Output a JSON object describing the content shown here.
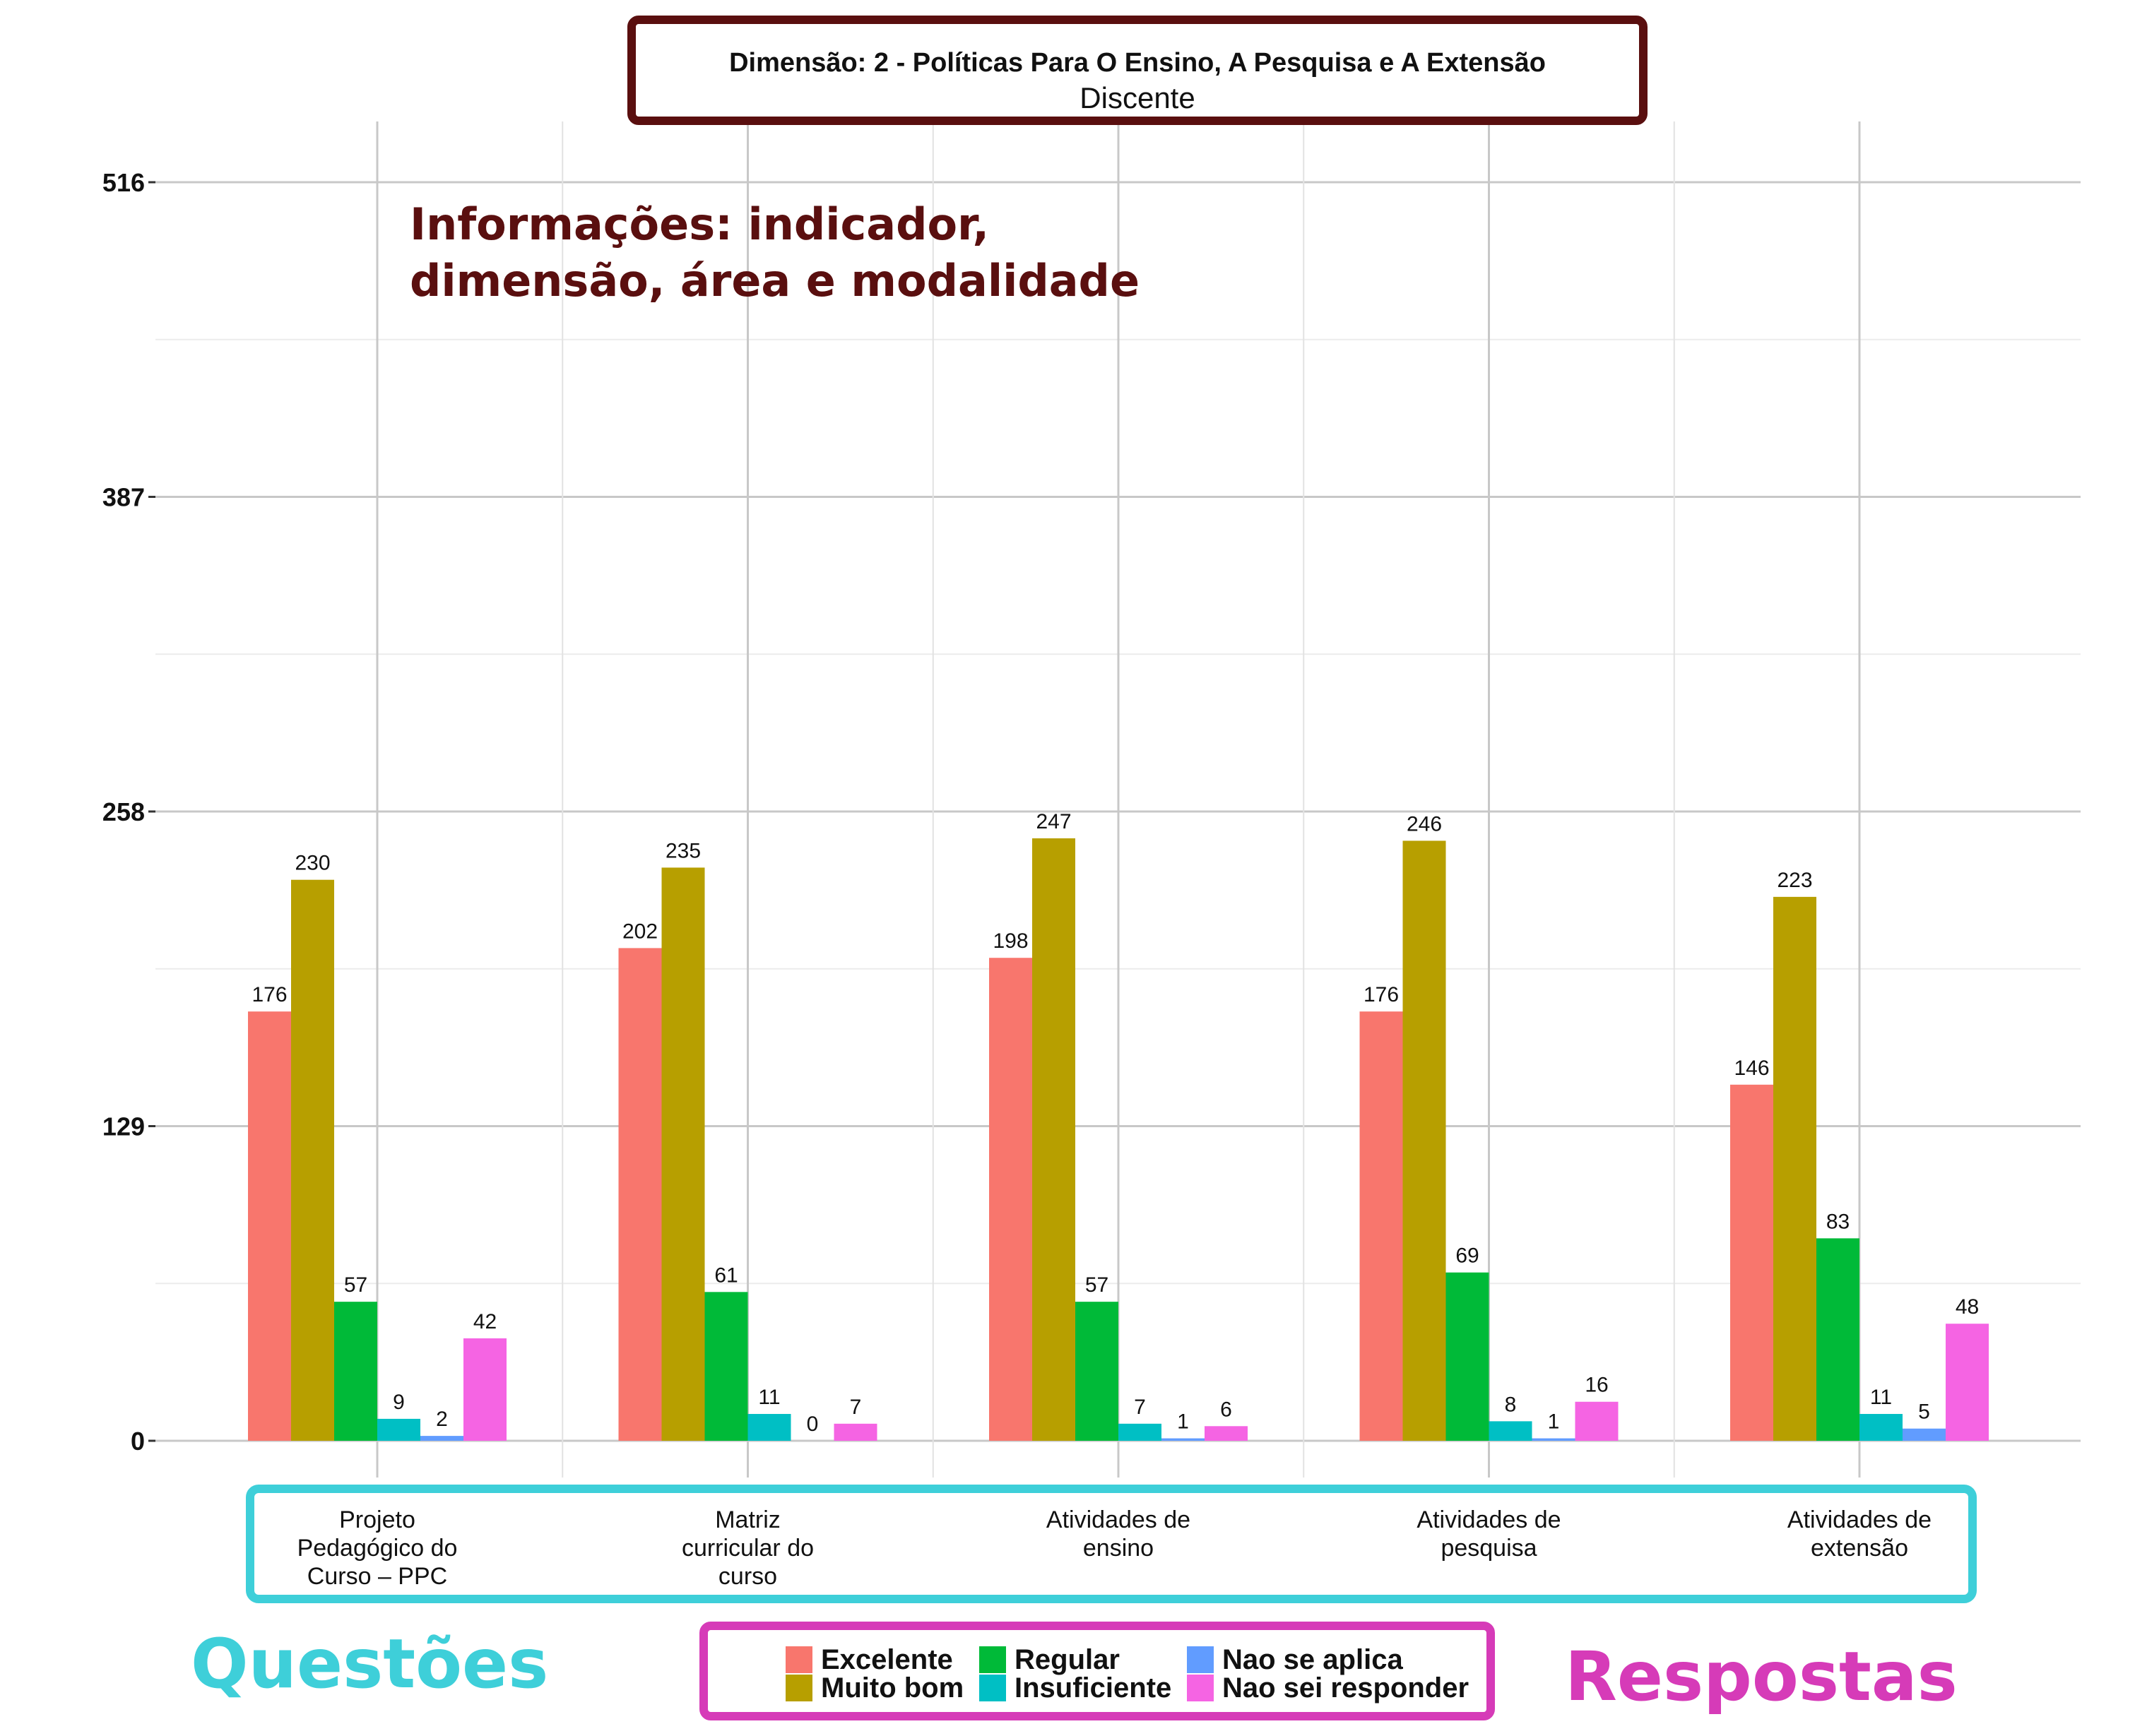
{
  "header": {
    "title": "Dimensão: 2 - Políticas Para O Ensino, A Pesquisa e A Extensão",
    "subtitle": "Discente"
  },
  "annotations": {
    "info_line1": "Informações: indicador,",
    "info_line2": "dimensão, área e modalidade",
    "questions": "Questões",
    "answers": "Respostas"
  },
  "colors": {
    "Excelente": "#f8766d",
    "Muito bom": "#b79f00",
    "Regular": "#00ba38",
    "Insuficiente": "#00bfc4",
    "Nao se aplica": "#619cff",
    "Nao sei responder": "#f564e3"
  },
  "chart_data": {
    "type": "bar",
    "title": "Dimensão: 2 - Políticas Para O Ensino, A Pesquisa e A Extensão",
    "subtitle": "Discente",
    "categories": [
      [
        "Projeto",
        "Pedagógico do",
        "Curso – PPC"
      ],
      [
        "Matriz",
        "curricular do",
        "curso"
      ],
      [
        "Atividades de",
        "ensino"
      ],
      [
        "Atividades de",
        "pesquisa"
      ],
      [
        "Atividades de",
        "extensão"
      ]
    ],
    "series": [
      {
        "name": "Excelente",
        "values": [
          176,
          202,
          198,
          176,
          146
        ]
      },
      {
        "name": "Muito bom",
        "values": [
          230,
          235,
          247,
          246,
          223
        ]
      },
      {
        "name": "Regular",
        "values": [
          57,
          61,
          57,
          69,
          83
        ]
      },
      {
        "name": "Insuficiente",
        "values": [
          9,
          11,
          7,
          8,
          11
        ]
      },
      {
        "name": "Nao se aplica",
        "values": [
          2,
          0,
          1,
          1,
          5
        ]
      },
      {
        "name": "Nao sei responder",
        "values": [
          42,
          7,
          6,
          16,
          48
        ]
      }
    ],
    "yticks": [
      0,
      129,
      258,
      387,
      516
    ],
    "ylim": [
      -15,
      540
    ],
    "grid": true,
    "legend_position": "bottom"
  }
}
